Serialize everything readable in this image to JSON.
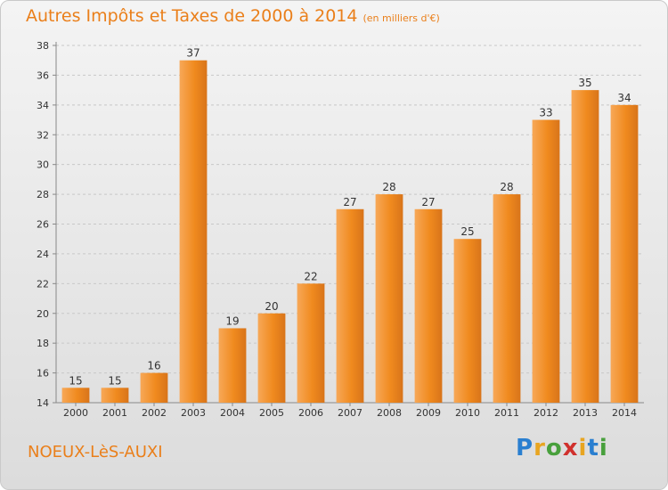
{
  "header": {
    "title": "Autres Impôts et Taxes de 2000 à 2014",
    "subtitle": "(en milliers d'€)"
  },
  "footer": {
    "place": "NOEUX-LèS-AUXI",
    "logo": [
      "P",
      "r",
      "o",
      "x",
      "i",
      "t",
      "i"
    ]
  },
  "colors": {
    "bar": "#f08a1e",
    "bar_light": "#f7a858",
    "title": "#ea7f1a",
    "grid": "#c8c8c8"
  },
  "chart_data": {
    "type": "bar",
    "title": "Autres Impôts et Taxes de 2000 à 2014",
    "subtitle": "(en milliers d'€)",
    "xlabel": "",
    "ylabel": "",
    "categories": [
      "2000",
      "2001",
      "2002",
      "2003",
      "2004",
      "2005",
      "2006",
      "2007",
      "2008",
      "2009",
      "2010",
      "2011",
      "2012",
      "2013",
      "2014"
    ],
    "values": [
      15,
      15,
      16,
      37,
      19,
      20,
      22,
      27,
      28,
      27,
      25,
      28,
      33,
      35,
      34
    ],
    "ylim": [
      14,
      38
    ],
    "yticks": [
      14,
      16,
      18,
      20,
      22,
      24,
      26,
      28,
      30,
      32,
      34,
      36,
      38
    ],
    "grid": true,
    "legend": "none"
  }
}
